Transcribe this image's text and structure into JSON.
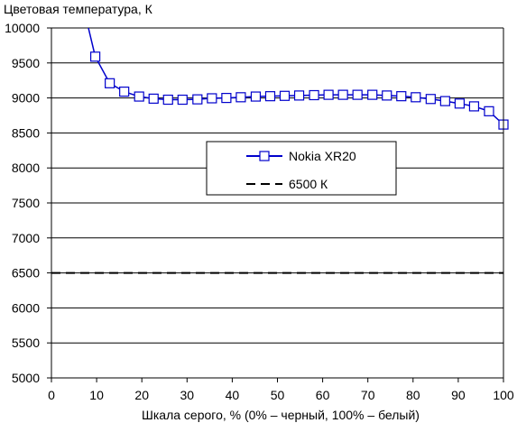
{
  "chart_data": {
    "type": "line",
    "title": "Цветовая температура, К",
    "xlabel": "Шкала серого, % (0% – черный, 100% – белый)",
    "ylabel": "",
    "xlim": [
      0,
      100
    ],
    "ylim": [
      5000,
      10000
    ],
    "x_ticks": [
      0,
      10,
      20,
      30,
      40,
      50,
      60,
      70,
      80,
      90,
      100
    ],
    "y_ticks": [
      5000,
      5500,
      6000,
      6500,
      7000,
      7500,
      8000,
      8500,
      9000,
      9500,
      10000
    ],
    "grid": "horizontal",
    "legend_position": "center-right",
    "series": [
      {
        "name": "Nokia XR20",
        "color": "#0000cc",
        "marker": "square",
        "points": [
          [
            8,
            10050
          ],
          [
            9.7,
            9590
          ],
          [
            12.9,
            9210
          ],
          [
            16.1,
            9090
          ],
          [
            19.4,
            9020
          ],
          [
            22.6,
            8990
          ],
          [
            25.8,
            8975
          ],
          [
            29.0,
            8975
          ],
          [
            32.3,
            8980
          ],
          [
            35.5,
            8995
          ],
          [
            38.7,
            9000
          ],
          [
            41.9,
            9010
          ],
          [
            45.2,
            9020
          ],
          [
            48.4,
            9025
          ],
          [
            51.6,
            9030
          ],
          [
            54.8,
            9035
          ],
          [
            58.1,
            9040
          ],
          [
            61.3,
            9045
          ],
          [
            64.5,
            9045
          ],
          [
            67.7,
            9045
          ],
          [
            71.0,
            9045
          ],
          [
            74.2,
            9035
          ],
          [
            77.4,
            9025
          ],
          [
            80.6,
            9010
          ],
          [
            83.9,
            8985
          ],
          [
            87.1,
            8955
          ],
          [
            90.3,
            8920
          ],
          [
            93.5,
            8880
          ],
          [
            96.8,
            8810
          ],
          [
            100,
            8620
          ]
        ]
      },
      {
        "name": "6500 К",
        "color": "#000000",
        "dashed": true,
        "points": [
          [
            0,
            6500
          ],
          [
            100,
            6500
          ]
        ]
      }
    ]
  }
}
